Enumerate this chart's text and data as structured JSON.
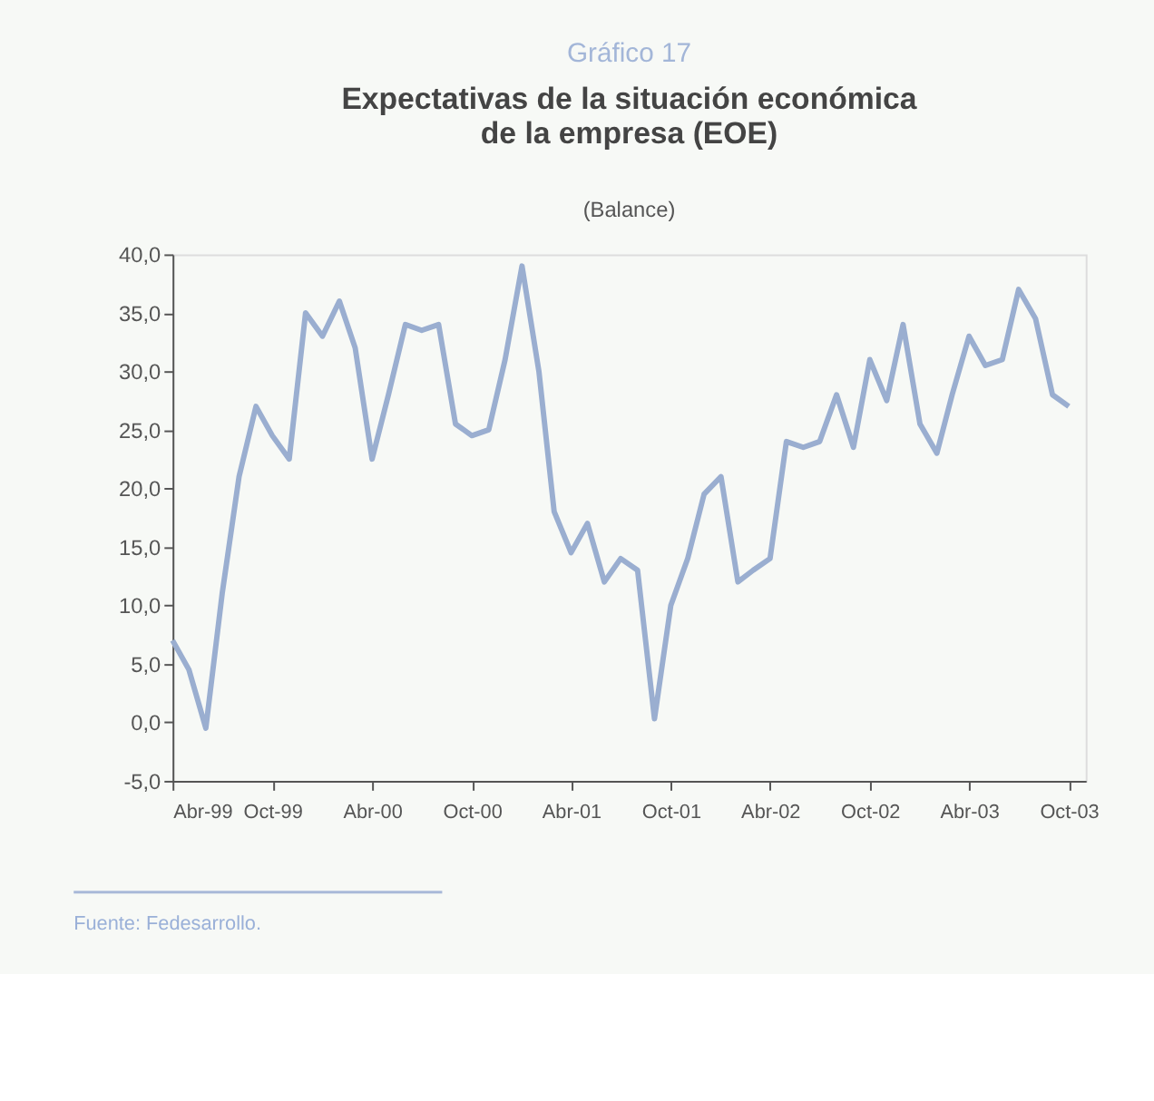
{
  "chart_data": {
    "type": "line",
    "title": "Gráfico 17",
    "subtitle": "Expectativas de la situación económica de la empresa (EOE)",
    "annotations": [
      "(Balance)",
      "Fuente: Fedesarrollo."
    ],
    "x": [
      "1999-04",
      "1999-05",
      "1999-06",
      "1999-07",
      "1999-08",
      "1999-09",
      "1999-10",
      "1999-11",
      "1999-12",
      "2000-01",
      "2000-02",
      "2000-03",
      "2000-04",
      "2000-05",
      "2000-06",
      "2000-07",
      "2000-08",
      "2000-09",
      "2000-10",
      "2000-11",
      "2000-12",
      "2001-01",
      "2001-02",
      "2001-03",
      "2001-04",
      "2001-05",
      "2001-06",
      "2001-07",
      "2001-08",
      "2001-09",
      "2001-10",
      "2001-11",
      "2001-12",
      "2002-01",
      "2002-02",
      "2002-03",
      "2002-04",
      "2002-05",
      "2002-06",
      "2002-07",
      "2002-08",
      "2002-09",
      "2002-10",
      "2002-11",
      "2002-12",
      "2003-01",
      "2003-02",
      "2003-03",
      "2003-04",
      "2003-05",
      "2003-06",
      "2003-07",
      "2003-08",
      "2003-09",
      "2003-10"
    ],
    "series": [
      {
        "color": "#9aaed0",
        "values": [
          7,
          4.5,
          -0.5,
          11,
          21,
          27,
          24.5,
          22.5,
          35,
          33,
          36,
          32,
          22.5,
          28,
          34,
          33.5,
          34,
          25.5,
          24.5,
          25,
          31,
          39,
          30,
          18,
          14.5,
          17,
          12,
          14,
          13,
          0.3,
          10,
          14,
          19.5,
          21,
          12,
          13,
          14,
          24,
          23.5,
          24,
          28,
          23.5,
          31,
          27.5,
          34,
          25.5,
          23,
          28,
          33,
          30.5,
          31,
          37,
          34.5,
          28,
          27
        ]
      }
    ],
    "xlim": [
      "1999-04-01",
      "2003-11-01"
    ],
    "xticks": [
      {
        "value": "1999-04",
        "label": "Abr-99"
      },
      {
        "value": "1999-10",
        "label": "Oct-99"
      },
      {
        "value": "2000-04",
        "label": "Abr-00"
      },
      {
        "value": "2000-10",
        "label": "Oct-00"
      },
      {
        "value": "2001-04",
        "label": "Abr-01"
      },
      {
        "value": "2001-10",
        "label": "Oct-01"
      },
      {
        "value": "2002-04",
        "label": "Abr-02"
      },
      {
        "value": "2002-10",
        "label": "Oct-02"
      },
      {
        "value": "2003-04",
        "label": "Abr-03"
      },
      {
        "value": "2003-10",
        "label": "Oct-03"
      }
    ],
    "ylim": [
      -5,
      40
    ],
    "yticks": [
      {
        "value": -5,
        "label": "-5,0"
      },
      {
        "value": 0,
        "label": "0,0"
      },
      {
        "value": 5,
        "label": "5,0"
      },
      {
        "value": 10,
        "label": "10,0"
      },
      {
        "value": 15,
        "label": "15,0"
      },
      {
        "value": 20,
        "label": "20,0"
      },
      {
        "value": 25,
        "label": "25,0"
      },
      {
        "value": 30,
        "label": "30,0"
      },
      {
        "value": 35,
        "label": "35,0"
      },
      {
        "value": 40,
        "label": "40,0"
      }
    ],
    "grid": false,
    "marker": "none",
    "line_style": "solid"
  }
}
